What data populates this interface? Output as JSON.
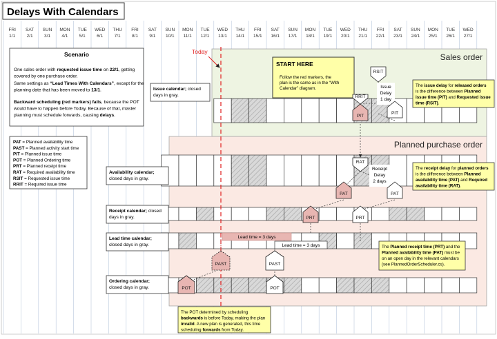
{
  "title": "Delays With Calendars",
  "days": [
    {
      "dow": "FRI",
      "date": "1/1"
    },
    {
      "dow": "SAT",
      "date": "2/1"
    },
    {
      "dow": "SUN",
      "date": "3/1"
    },
    {
      "dow": "MON",
      "date": "4/1"
    },
    {
      "dow": "TUE",
      "date": "5/1"
    },
    {
      "dow": "WED",
      "date": "6/1"
    },
    {
      "dow": "THU",
      "date": "7/1"
    },
    {
      "dow": "FRI",
      "date": "8/1"
    },
    {
      "dow": "SAT",
      "date": "9/1"
    },
    {
      "dow": "SUN",
      "date": "10/1"
    },
    {
      "dow": "MON",
      "date": "11/1"
    },
    {
      "dow": "TUE",
      "date": "12/1"
    },
    {
      "dow": "WED",
      "date": "13/1"
    },
    {
      "dow": "THU",
      "date": "14/1"
    },
    {
      "dow": "FRI",
      "date": "15/1"
    },
    {
      "dow": "SAT",
      "date": "16/1"
    },
    {
      "dow": "SUN",
      "date": "17/1"
    },
    {
      "dow": "MON",
      "date": "18/1"
    },
    {
      "dow": "TUE",
      "date": "19/1"
    },
    {
      "dow": "WED",
      "date": "20/1"
    },
    {
      "dow": "THU",
      "date": "21/1"
    },
    {
      "dow": "FRI",
      "date": "22/1"
    },
    {
      "dow": "SAT",
      "date": "23/1"
    },
    {
      "dow": "SUN",
      "date": "24/1"
    },
    {
      "dow": "MON",
      "date": "25/1"
    },
    {
      "dow": "TUE",
      "date": "26/1"
    },
    {
      "dow": "WED",
      "date": "27/1"
    }
  ],
  "today_label": "Today",
  "scenario": {
    "heading": "Scenario",
    "p1": [
      {
        "t": "One sales order with ",
        "b": false
      },
      {
        "t": "requested issue time",
        "b": true
      },
      {
        "t": " on ",
        "b": false
      },
      {
        "t": "22/1",
        "b": true
      },
      {
        "t": ", getting",
        "b": false
      },
      {
        "br": true
      },
      {
        "t": "covered by one purchase order.",
        "b": false
      }
    ],
    "p2": [
      {
        "t": "Same settings as ",
        "b": false
      },
      {
        "t": "“Lead Times With Calendars”",
        "b": true
      },
      {
        "t": ", except for the",
        "b": false
      },
      {
        "br": true
      },
      {
        "t": "planning date that has been moved to ",
        "b": false
      },
      {
        "t": "13/1",
        "b": true
      },
      {
        "t": ".",
        "b": false
      }
    ],
    "p3": [
      {
        "t": "Backward scheduling (red markers) fails",
        "b": true
      },
      {
        "t": ", because the POT",
        "b": false
      },
      {
        "br": true
      },
      {
        "t": "would have to happen before Today. Because of that, master",
        "b": false
      },
      {
        "br": true
      },
      {
        "t": "planning must schedule forwards, causing ",
        "b": false
      },
      {
        "t": "delays",
        "b": true
      },
      {
        "t": ".",
        "b": false
      }
    ]
  },
  "legend": [
    {
      "abbr": "PAT",
      "desc": "= Planned availability time"
    },
    {
      "abbr": "PAST",
      "desc": "= Planned activity start time"
    },
    {
      "abbr": "PIT",
      "desc": "= Planned issue time"
    },
    {
      "abbr": "POT",
      "desc": "= Planned Ordering time"
    },
    {
      "abbr": "PRT",
      "desc": "= Planned receipt time"
    },
    {
      "abbr": "RAT",
      "desc": "= Required availability time"
    },
    {
      "abbr": "RSIT",
      "desc": "= Requested issue time"
    },
    {
      "abbr": "RRIT",
      "desc": "= Required issue time"
    }
  ],
  "sales_order": {
    "title": "Sales order",
    "issue_calendar": [
      {
        "t": "Issue calendar;",
        "b": true
      },
      {
        "t": " closed",
        "b": false
      },
      {
        "br": true
      },
      {
        "t": "days in gray.",
        "b": false
      }
    ]
  },
  "purchase_order": {
    "title": "Planned purchase order",
    "availability_calendar": [
      {
        "t": "Availability calendar;",
        "b": true
      },
      {
        "br": true
      },
      {
        "t": "closed days in gray.",
        "b": false
      }
    ],
    "receipt_calendar": [
      {
        "t": "Receipt calendar;",
        "b": true
      },
      {
        "t": " closed",
        "b": false
      },
      {
        "br": true
      },
      {
        "t": "days in gray.",
        "b": false
      }
    ],
    "lead_time_calendar": [
      {
        "t": "Lead time calendar;",
        "b": true
      },
      {
        "br": true
      },
      {
        "t": "closed days in gray.",
        "b": false
      }
    ],
    "ordering_calendar": [
      {
        "t": "Ordering calendar;",
        "b": true
      },
      {
        "br": true
      },
      {
        "t": "closed days in gray.",
        "b": false
      }
    ]
  },
  "start_here": {
    "heading": "START HERE",
    "body": [
      {
        "t": "Follow the red markers, the",
        "b": false
      },
      {
        "br": true
      },
      {
        "t": "plan is the same as in the “With",
        "b": false
      },
      {
        "br": true
      },
      {
        "t": "Calendar” diagram.",
        "b": false
      }
    ]
  },
  "markers": {
    "rsit": "RSIT",
    "rrit": "RRIT",
    "pit_red": "PIT",
    "pit": "PIT",
    "rat": "RAT",
    "pat_red": "PAT",
    "pat": "PAT",
    "prt_red": "PRT",
    "prt": "PRT",
    "past_red": "PAST",
    "past": "PAST",
    "pot_red": "POT",
    "pot": "POT"
  },
  "issue_delay": {
    "l1": "Issue",
    "l2": "Delay",
    "l3": "1 day"
  },
  "receipt_delay": {
    "l1": "Receipt",
    "l2": "Delay",
    "l3": "2 days"
  },
  "lead_time_red": "Lead time = 3 days",
  "lead_time": "Lead time = 3 days",
  "note_issue_delay": [
    {
      "t": "The ",
      "b": false
    },
    {
      "t": "issue delay",
      "b": true
    },
    {
      "t": " for ",
      "b": false
    },
    {
      "t": "released orders",
      "b": true
    },
    {
      "br": true
    },
    {
      "t": "is the difference between ",
      "b": false
    },
    {
      "t": "Planned",
      "b": true
    },
    {
      "br": true
    },
    {
      "t": "issue time (PIT)",
      "b": true
    },
    {
      "t": " and ",
      "b": false
    },
    {
      "t": "Requested issue",
      "b": true
    },
    {
      "br": true
    },
    {
      "t": "time (RSIT)",
      "b": true
    },
    {
      "t": ".",
      "b": false
    }
  ],
  "note_receipt_delay": [
    {
      "t": "The ",
      "b": false
    },
    {
      "t": "receipt delay",
      "b": true
    },
    {
      "t": " for ",
      "b": false
    },
    {
      "t": "planned orders",
      "b": true
    },
    {
      "br": true
    },
    {
      "t": "is the difference between ",
      "b": false
    },
    {
      "t": "Planned",
      "b": true
    },
    {
      "br": true
    },
    {
      "t": "availability time (PAT)",
      "b": true
    },
    {
      "t": " and ",
      "b": false
    },
    {
      "t": "Required",
      "b": true
    },
    {
      "br": true
    },
    {
      "t": "availability time (RAT)",
      "b": true
    },
    {
      "t": ".",
      "b": false
    }
  ],
  "note_prt_pat": [
    {
      "t": "The ",
      "b": false
    },
    {
      "t": "Planned receipt time (PRT)",
      "b": true
    },
    {
      "t": " and the",
      "b": false
    },
    {
      "br": true
    },
    {
      "t": "Planned availability time (PAT)",
      "b": true
    },
    {
      "t": " must be",
      "b": false
    },
    {
      "br": true
    },
    {
      "t": "on an open day in the relevant calendars",
      "b": false
    },
    {
      "br": true
    },
    {
      "t": "(see PlannedOrderScheduler.cs).",
      "b": false
    }
  ],
  "note_pot": [
    {
      "t": "The POT determined by scheduling",
      "b": false
    },
    {
      "br": true
    },
    {
      "t": "backwards",
      "b": true
    },
    {
      "t": " is before Today, making the plan",
      "b": false
    },
    {
      "br": true
    },
    {
      "t": "invalid",
      "b": true
    },
    {
      "t": ". A new plan is generated, this time",
      "b": false
    },
    {
      "br": true
    },
    {
      "t": "scheduling ",
      "b": false
    },
    {
      "t": "forwards",
      "b": true
    },
    {
      "t": " from Today.",
      "b": false
    }
  ],
  "calendars": {
    "issue": {
      "start": 12,
      "end": 26,
      "closed": [
        13,
        14,
        20,
        21
      ]
    },
    "availability": {
      "start": 9,
      "end": 26,
      "closed": [
        13,
        14,
        20,
        21
      ]
    },
    "receipt": {
      "start": 9,
      "end": 26,
      "closed": [
        11,
        15,
        16,
        22,
        23
      ]
    },
    "lead_time": {
      "start": 9,
      "end": 26,
      "closed": [
        10,
        18,
        20
      ]
    },
    "ordering": {
      "start": 9,
      "end": 26,
      "closed": [
        11,
        12,
        13,
        14,
        15,
        16,
        19,
        20,
        21
      ]
    }
  },
  "colors": {
    "sales_bg": "#eef4e2",
    "purchase_bg": "#fbe9e3",
    "note_bg": "#ffffa8",
    "red_marker": "#e8b6b2",
    "today_line": "#e02020",
    "grid": "#b8c7dc"
  }
}
